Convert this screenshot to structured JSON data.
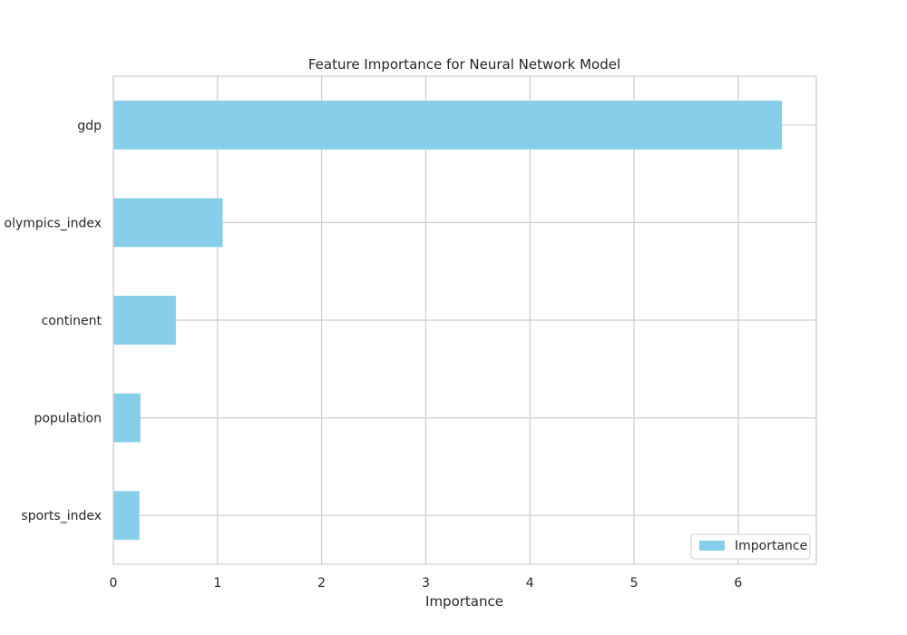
{
  "chart_data": {
    "type": "bar",
    "orientation": "horizontal",
    "title": "Feature Importance for Neural Network Model",
    "xlabel": "Importance",
    "ylabel": "",
    "categories": [
      "gdp",
      "olympics_index",
      "continent",
      "population",
      "sports_index"
    ],
    "series": [
      {
        "name": "Importance",
        "values": [
          6.42,
          1.05,
          0.6,
          0.26,
          0.25
        ]
      }
    ],
    "xlim": [
      0,
      6.75
    ],
    "xticks": [
      "0",
      "1",
      "2",
      "3",
      "4",
      "5",
      "6"
    ],
    "grid": true,
    "legend_position": "bottom-right",
    "bar_color": "#87CEEB",
    "grid_color": "#cccccc"
  }
}
